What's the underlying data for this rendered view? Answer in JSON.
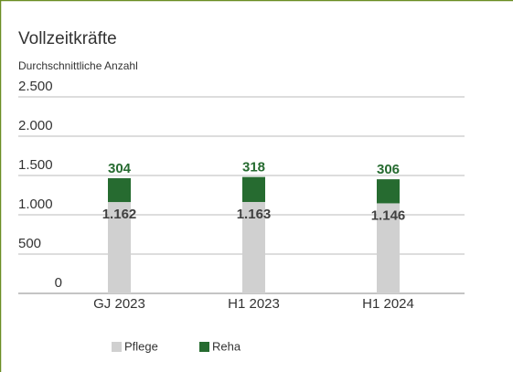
{
  "chart_data": {
    "type": "stacked_bar",
    "title": "Vollzeitkräfte",
    "subtitle": "Durchschnittliche Anzahl",
    "categories": [
      "GJ 2023",
      "H1 2023",
      "H1 2024"
    ],
    "series": [
      {
        "name": "Pflege",
        "color": "#d0d0d0",
        "values": [
          1162,
          1163,
          1146
        ],
        "value_labels": [
          "1.162",
          "1.163",
          "1.146"
        ],
        "label_color": "#404040"
      },
      {
        "name": "Reha",
        "color": "#266b30",
        "values": [
          304,
          318,
          306
        ],
        "label_color": "#266b30"
      }
    ],
    "ylim": [
      0,
      2500
    ],
    "yticks": [
      0,
      500,
      {
        "value": 1000,
        "label": "1.000"
      },
      {
        "value": 1500,
        "label": "1.500"
      },
      {
        "value": 2000,
        "label": "2.000"
      },
      {
        "value": 2500,
        "label": "2.500"
      }
    ],
    "grid": true,
    "legend": "bottom"
  }
}
